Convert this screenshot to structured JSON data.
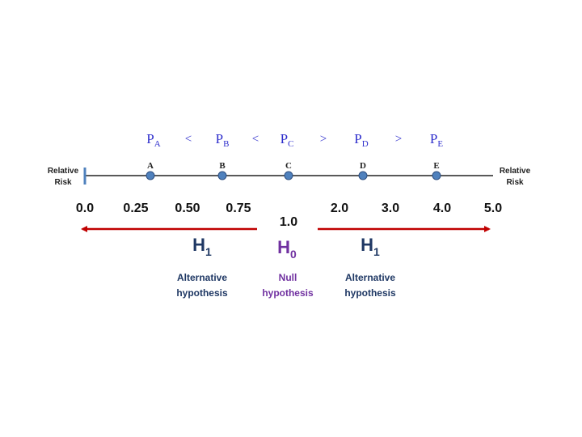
{
  "probabilities": [
    {
      "letter": "P",
      "sub": "A"
    },
    {
      "letter": "P",
      "sub": "B"
    },
    {
      "letter": "P",
      "sub": "C"
    },
    {
      "letter": "P",
      "sub": "D"
    },
    {
      "letter": "P",
      "sub": "E"
    }
  ],
  "operators": [
    "<",
    "<",
    ">",
    ">"
  ],
  "axis_label_left": [
    "Relative",
    "Risk"
  ],
  "axis_label_right": [
    "Relative",
    "Risk"
  ],
  "points": [
    "A",
    "B",
    "C",
    "D",
    "E"
  ],
  "ticks": [
    "0.0",
    "0.25",
    "0.50",
    "0.75",
    "1.0",
    "2.0",
    "3.0",
    "4.0",
    "5.0"
  ],
  "hypotheses": [
    {
      "symbol": "H",
      "sub": "1",
      "description": [
        "Alternative",
        "hypothesis"
      ]
    },
    {
      "symbol": "H",
      "sub": "0",
      "description": [
        "Null",
        "hypothesis"
      ]
    },
    {
      "symbol": "H",
      "sub": "1",
      "description": [
        "Alternative",
        "hypothesis"
      ]
    }
  ]
}
